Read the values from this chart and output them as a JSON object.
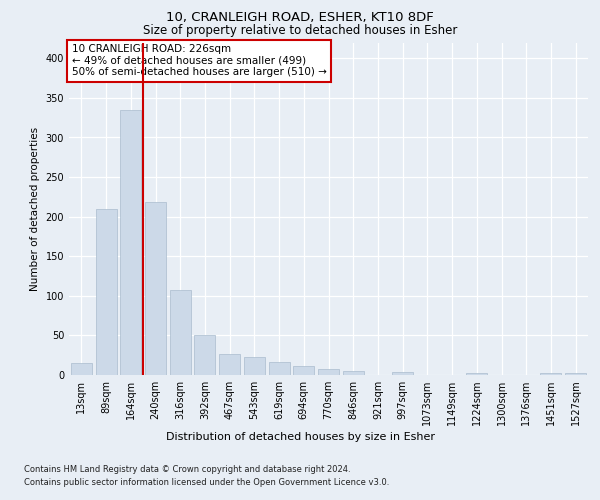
{
  "title1": "10, CRANLEIGH ROAD, ESHER, KT10 8DF",
  "title2": "Size of property relative to detached houses in Esher",
  "xlabel": "Distribution of detached houses by size in Esher",
  "ylabel": "Number of detached properties",
  "footer1": "Contains HM Land Registry data © Crown copyright and database right 2024.",
  "footer2": "Contains public sector information licensed under the Open Government Licence v3.0.",
  "annotation_line1": "10 CRANLEIGH ROAD: 226sqm",
  "annotation_line2": "← 49% of detached houses are smaller (499)",
  "annotation_line3": "50% of semi-detached houses are larger (510) →",
  "bar_labels": [
    "13sqm",
    "89sqm",
    "164sqm",
    "240sqm",
    "316sqm",
    "392sqm",
    "467sqm",
    "543sqm",
    "619sqm",
    "694sqm",
    "770sqm",
    "846sqm",
    "921sqm",
    "997sqm",
    "1073sqm",
    "1149sqm",
    "1224sqm",
    "1300sqm",
    "1376sqm",
    "1451sqm",
    "1527sqm"
  ],
  "bar_values": [
    15,
    210,
    335,
    218,
    107,
    51,
    27,
    23,
    17,
    11,
    7,
    5,
    0,
    4,
    0,
    0,
    3,
    0,
    0,
    3,
    3
  ],
  "bar_color": "#ccd9e8",
  "bar_edge_color": "#aabcce",
  "vline_x": 2.5,
  "vline_color": "#cc0000",
  "ylim": [
    0,
    420
  ],
  "yticks": [
    0,
    50,
    100,
    150,
    200,
    250,
    300,
    350,
    400
  ],
  "bg_color": "#e8eef5",
  "plot_bg_color": "#e8eef5",
  "grid_color": "#ffffff",
  "annotation_box_color": "#ffffff",
  "annotation_box_edge": "#cc0000",
  "title1_fontsize": 9.5,
  "title2_fontsize": 8.5,
  "ylabel_fontsize": 7.5,
  "xlabel_fontsize": 8.0,
  "tick_fontsize": 7.0,
  "annotation_fontsize": 7.5,
  "footer_fontsize": 6.0
}
